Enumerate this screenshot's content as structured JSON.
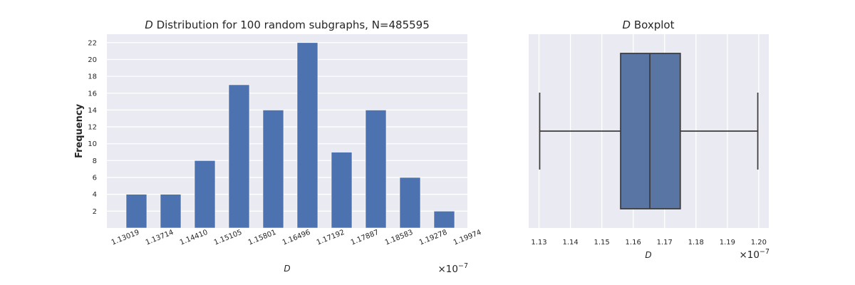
{
  "chart_data": [
    {
      "type": "bar",
      "title_var": "D",
      "title_rest": " Distribution for 100 random subgraphs, N=485595",
      "xlabel": "D",
      "ylabel": "Frequency",
      "x_offset_base": "×10",
      "x_offset_exp": "−7",
      "bin_edges": [
        "1.13019",
        "1.13714",
        "1.14410",
        "1.15105",
        "1.15801",
        "1.16496",
        "1.17192",
        "1.17887",
        "1.18583",
        "1.19278",
        "1.19974"
      ],
      "values": [
        4,
        4,
        8,
        17,
        14,
        22,
        9,
        14,
        6,
        2
      ],
      "yticks": [
        "2",
        "4",
        "6",
        "8",
        "10",
        "12",
        "14",
        "16",
        "18",
        "20",
        "22"
      ],
      "ylim": [
        0,
        23
      ],
      "grid": true,
      "bar_color": "#4c72b0",
      "background_color": "#eaeaf2"
    },
    {
      "type": "boxplot",
      "title_var": "D",
      "title_rest": " Boxplot",
      "xlabel": "D",
      "x_offset_base": "×10",
      "x_offset_exp": "−7",
      "stats": {
        "whisker_low": 1.1302,
        "q1": 1.156,
        "median": 1.1653,
        "q3": 1.175,
        "whisker_high": 1.1997
      },
      "xticks": [
        "1.13",
        "1.14",
        "1.15",
        "1.16",
        "1.17",
        "1.18",
        "1.19",
        "1.20"
      ],
      "xlim": [
        1.1267,
        1.2032
      ],
      "grid": true,
      "box_color": "#5875a4",
      "line_color": "#3d3d3d",
      "background_color": "#eaeaf2"
    }
  ]
}
